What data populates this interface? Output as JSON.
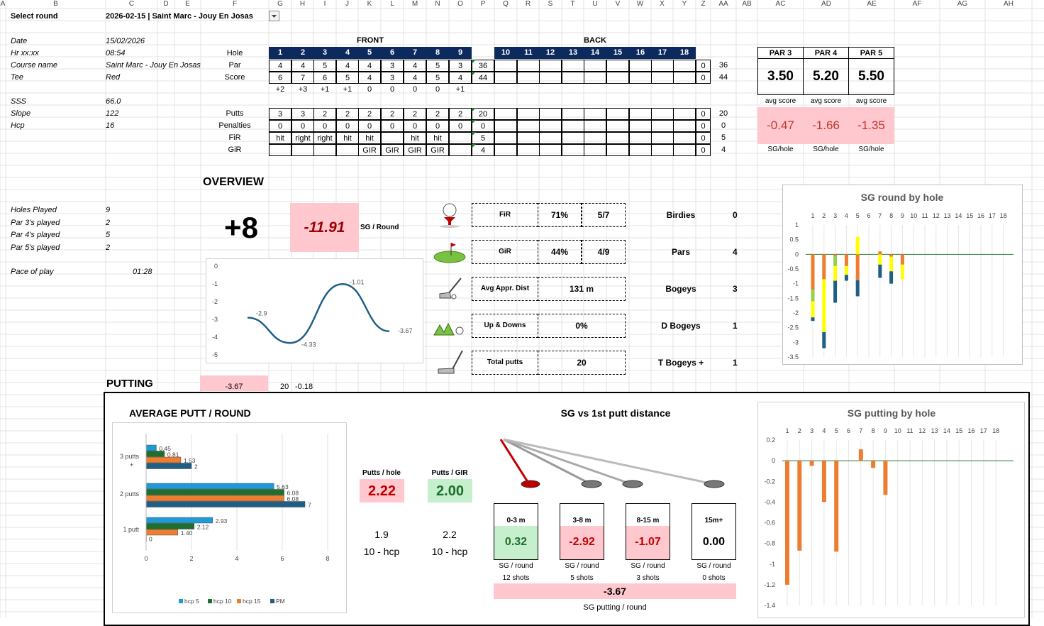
{
  "column_headers": [
    "A",
    "B",
    "C",
    "D",
    "E",
    "F",
    "G",
    "H",
    "I",
    "J",
    "K",
    "L",
    "M",
    "N",
    "O",
    "P",
    "Q",
    "R",
    "S",
    "T",
    "U",
    "V",
    "W",
    "X",
    "Y",
    "Z",
    "AA",
    "AB",
    "AC",
    "AD",
    "AE",
    "AF",
    "AG",
    "AH"
  ],
  "select_round": {
    "label": "Select round",
    "value": "2026-02-15 | Saint Marc - Jouy En Josas"
  },
  "info": [
    {
      "label": "Date",
      "value": "15/02/2026"
    },
    {
      "label": "Hr xx:xx",
      "value": "08:54"
    },
    {
      "label": "Course name",
      "value": "Saint Marc - Jouy En Josas"
    },
    {
      "label": "Tee",
      "value": "Red"
    },
    {
      "label": "SSS",
      "value": "66.0"
    },
    {
      "label": "Slope",
      "value": "122"
    },
    {
      "label": "Hcp",
      "value": "16"
    }
  ],
  "played": [
    {
      "label": "Holes Played",
      "value": "9"
    },
    {
      "label": "Par 3's played",
      "value": "2"
    },
    {
      "label": "Par 4's played",
      "value": "5"
    },
    {
      "label": "Par 5's played",
      "value": "2"
    }
  ],
  "pace": {
    "label": "Pace of play",
    "value": "01:28"
  },
  "scorecard": {
    "front_label": "FRONT",
    "back_label": "BACK",
    "hole_label": "Hole",
    "holes_front": [
      "1",
      "2",
      "3",
      "4",
      "5",
      "6",
      "7",
      "8",
      "9"
    ],
    "holes_back": [
      "10",
      "11",
      "12",
      "13",
      "14",
      "15",
      "16",
      "17",
      "18"
    ],
    "par_label": "Par",
    "par_front": [
      "4",
      "4",
      "5",
      "4",
      "4",
      "3",
      "4",
      "5",
      "3"
    ],
    "par_out": "36",
    "par_in": "0",
    "par_total": "36",
    "score_label": "Score",
    "score_front": [
      "6",
      "7",
      "6",
      "5",
      "4",
      "3",
      "4",
      "5",
      "4"
    ],
    "score_out": "44",
    "score_in": "0",
    "score_total": "44",
    "diff_front": [
      "+2",
      "+3",
      "+1",
      "+1",
      "0",
      "0",
      "0",
      "0",
      "+1"
    ],
    "putts_label": "Putts",
    "putts_front": [
      "3",
      "3",
      "2",
      "2",
      "2",
      "2",
      "2",
      "2",
      "2"
    ],
    "putts_out": "20",
    "putts_in": "0",
    "putts_total": "20",
    "pen_label": "Penalties",
    "pen_front": [
      "0",
      "0",
      "0",
      "0",
      "0",
      "0",
      "0",
      "0",
      "0"
    ],
    "pen_out": "0",
    "pen_in": "0",
    "pen_total": "0",
    "fir_label": "FiR",
    "fir_front": [
      "hit",
      "right",
      "right",
      "hit",
      "hit",
      "",
      "hit",
      "hit",
      ""
    ],
    "fir_out": "5",
    "fir_in": "0",
    "fir_total": "5",
    "gir_label": "GiR",
    "gir_front": [
      "",
      "",
      "",
      "",
      "GIR",
      "GIR",
      "GIR",
      "GIR",
      ""
    ],
    "gir_out": "4",
    "gir_in": "0",
    "gir_total": "4"
  },
  "par_avg": [
    {
      "header": "PAR 3",
      "avg": "3.50",
      "avg_label": "avg score",
      "sg": "-0.47",
      "sg_label": "SG/hole"
    },
    {
      "header": "PAR 4",
      "avg": "5.20",
      "avg_label": "avg score",
      "sg": "-1.66",
      "sg_label": "SG/hole"
    },
    {
      "header": "PAR 5",
      "avg": "5.50",
      "avg_label": "avg score",
      "sg": "-1.35",
      "sg_label": "SG/hole"
    }
  ],
  "overview": {
    "title": "OVERVIEW",
    "score": "+8",
    "sg": "-11.91",
    "sg_label": "SG / Round"
  },
  "stats": [
    {
      "icon": "golf-ball-tee-icon",
      "label": "FiR",
      "pct": "71%",
      "frac": "5/7"
    },
    {
      "icon": "green-flag-icon",
      "label": "GiR",
      "pct": "44%",
      "frac": "4/9"
    },
    {
      "icon": "iron-club-icon",
      "label": "Avg Appr. Dist",
      "pct": "131  m",
      "frac": ""
    },
    {
      "icon": "chip-shot-icon",
      "label": "Up & Downs",
      "pct": "0%",
      "frac": ""
    },
    {
      "icon": "putter-icon",
      "label": "Total putts",
      "pct": "20",
      "frac": ""
    }
  ],
  "score_types": [
    {
      "label": "Birdies",
      "value": "0"
    },
    {
      "label": "Pars",
      "value": "4"
    },
    {
      "label": "Bogeys",
      "value": "3"
    },
    {
      "label": "D Bogeys",
      "value": "1"
    },
    {
      "label": "T Bogeys +",
      "value": "1"
    }
  ],
  "putting": {
    "title": "PUTTING",
    "sg": "-3.67",
    "putts": "20",
    "per": "-0.18"
  },
  "putt_cards": [
    {
      "header": "Putts / hole",
      "value": "2.22",
      "ref": "1.9",
      "ref_label": "10 - hcp"
    },
    {
      "header": "Putts / GIR",
      "value": "2.00",
      "ref": "2.2",
      "ref_label": "10 - hcp"
    }
  ],
  "sg_dist": {
    "title": "SG vs 1st putt distance",
    "buckets": [
      {
        "header": "0-3 m",
        "value": "0.32",
        "label": "SG / round",
        "shots": "12 shots"
      },
      {
        "header": "3-8 m",
        "value": "-2.92",
        "label": "SG / round",
        "shots": "5 shots"
      },
      {
        "header": "8-15 m",
        "value": "-1.07",
        "label": "SG / round",
        "shots": "3 shots"
      },
      {
        "header": "15m+",
        "value": "0.00",
        "label": "SG / round",
        "shots": "0 shots"
      }
    ],
    "total": "-3.67",
    "total_label": "SG putting / round"
  },
  "colors": {
    "navy": "#0d2a5e",
    "pink": "#ffc7ce",
    "green": "#c6efce",
    "line": "#1f5f86",
    "hcp5": "#1f9ad6",
    "hcp10": "#1e6e2e",
    "hcp15": "#ed7d31",
    "pm": "#1f5f86",
    "sg_orange": "#ed7d31",
    "sg_yellow": "#ffff00",
    "sg_green": "#92d050",
    "sg_blue": "#1f5f86"
  },
  "chart_data": [
    {
      "type": "line",
      "x": [
        1,
        2,
        3,
        4
      ],
      "values": [
        -2.9,
        -4.33,
        -1.01,
        -3.67
      ],
      "data_labels": [
        "-2.9",
        "-4.33",
        "-1.01",
        "-3.67"
      ],
      "ylim": [
        -5,
        0
      ],
      "yticks": [
        "0",
        "-1",
        "-2",
        "-3",
        "-4",
        "-5"
      ]
    },
    {
      "type": "bar",
      "title": "SG round by hole",
      "categories": [
        "1",
        "2",
        "3",
        "4",
        "5",
        "6",
        "7",
        "8",
        "9",
        "10",
        "11",
        "12",
        "13",
        "14",
        "15",
        "16",
        "17",
        "18"
      ],
      "yticks": [
        "1",
        "0.5",
        "0",
        "-0.5",
        "-1",
        "-1.5",
        "-2",
        "-2.5",
        "-3",
        "-3.5"
      ],
      "ylim": [
        -3.5,
        1
      ],
      "stacks": [
        [
          [
            "#ed7d31",
            -1.2
          ],
          [
            "#92d050",
            -0.4
          ],
          [
            "#ffff00",
            -0.55
          ],
          [
            "#1f5f86",
            -0.12
          ]
        ],
        [
          [
            "#ed7d31",
            -0.85
          ],
          [
            "#ffff00",
            -1.8
          ],
          [
            "#1f5f86",
            -0.55
          ]
        ],
        [
          [
            "#ed7d31",
            -0.05
          ],
          [
            "#92d050",
            -0.35
          ],
          [
            "#ffff00",
            -0.5
          ],
          [
            "#1f5f86",
            -0.75
          ]
        ],
        [
          [
            "#ed7d31",
            -0.4
          ],
          [
            "#ffff00",
            -0.3
          ],
          [
            "#1f5f86",
            -0.2
          ]
        ],
        [
          [
            "#ffff00",
            0.6
          ],
          [
            "#ed7d31",
            -0.88
          ],
          [
            "#1f5f86",
            -0.55
          ]
        ],
        [],
        [
          [
            "#ed7d31",
            0.1
          ],
          [
            "#ffff00",
            -0.35
          ],
          [
            "#1f5f86",
            -0.45
          ]
        ],
        [
          [
            "#ed7d31",
            -0.08
          ],
          [
            "#ffff00",
            -0.5
          ],
          [
            "#1f5f86",
            -0.42
          ]
        ],
        [
          [
            "#ed7d31",
            -0.35
          ],
          [
            "#ffff00",
            -0.5
          ]
        ],
        [],
        [],
        [],
        [],
        [],
        [],
        [],
        [],
        []
      ]
    },
    {
      "type": "bar",
      "title": "AVERAGE PUTT / ROUND",
      "categories": [
        "3 putts +",
        "2 putts",
        "1 putt"
      ],
      "xticks": [
        "0",
        "2",
        "4",
        "6",
        "8"
      ],
      "xlim": [
        0,
        8
      ],
      "series": [
        {
          "name": "hcp 5",
          "values": [
            0.45,
            5.63,
            2.93
          ]
        },
        {
          "name": "hcp 10",
          "values": [
            0.81,
            6.08,
            2.12
          ]
        },
        {
          "name": "hcp 15",
          "values": [
            1.53,
            6.08,
            1.4
          ]
        },
        {
          "name": "PM",
          "values": [
            2,
            7,
            0
          ]
        }
      ],
      "data_labels": [
        [
          "0.45",
          "5.63",
          "2.93"
        ],
        [
          "0.81",
          "6.08",
          "2.12"
        ],
        [
          "1.53",
          "6.08",
          "1.40"
        ],
        [
          "2",
          "7",
          "0"
        ]
      ]
    },
    {
      "type": "bar",
      "title": "SG putting by hole",
      "categories": [
        "1",
        "2",
        "3",
        "4",
        "5",
        "6",
        "7",
        "8",
        "9",
        "10",
        "11",
        "12",
        "13",
        "14",
        "15",
        "16",
        "17",
        "18"
      ],
      "values": [
        -1.2,
        -0.87,
        -0.05,
        -0.4,
        -0.88,
        0,
        0.11,
        -0.07,
        -0.33,
        0,
        0,
        0,
        0,
        0,
        0,
        0,
        0,
        0
      ],
      "yticks": [
        "0.2",
        "0",
        "-0.2",
        "-0.4",
        "-0.6",
        "-0.8",
        "-1",
        "-1.2",
        "-1.4"
      ],
      "ylim": [
        -1.4,
        0.2
      ]
    }
  ]
}
